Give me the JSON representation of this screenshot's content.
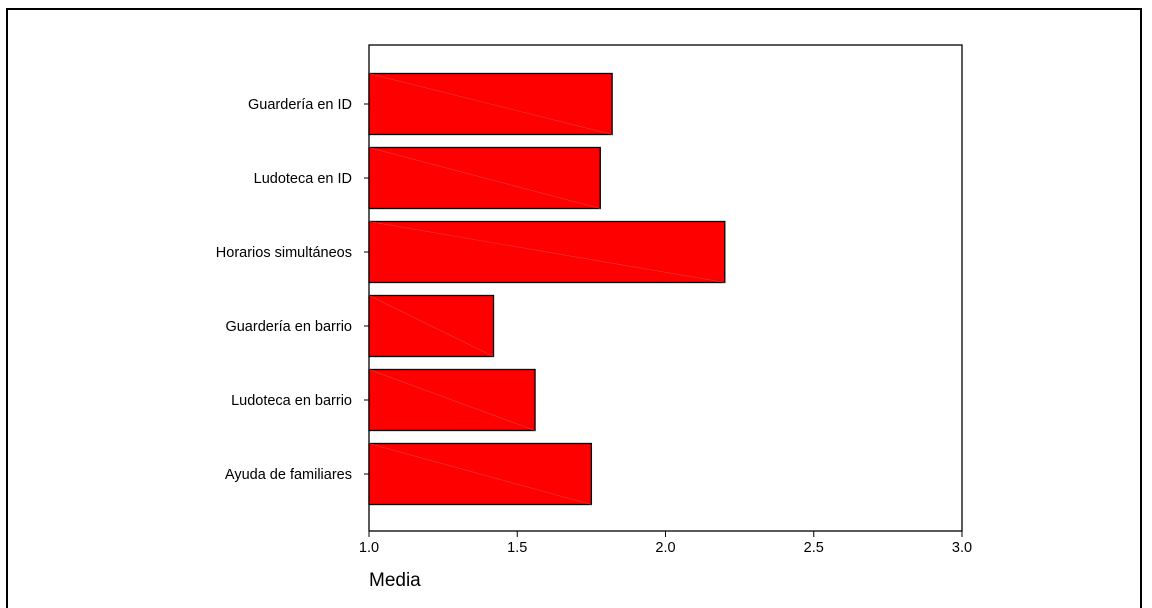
{
  "chart_data": {
    "type": "bar",
    "orientation": "horizontal",
    "title": "",
    "xlabel": "Media",
    "ylabel": "",
    "categories": [
      "Guardería en ID",
      "Ludoteca en ID",
      "Horarios simultáneos",
      "Guardería en barrio",
      "Ludoteca en barrio",
      "Ayuda de familiares"
    ],
    "values": [
      1.82,
      1.78,
      2.2,
      1.42,
      1.56,
      1.75
    ],
    "xlim": [
      1.0,
      3.0
    ],
    "xticks": [
      "1.0",
      "1.5",
      "2.0",
      "2.5",
      "3.0"
    ],
    "grid": false,
    "bar_color": "#ff0000",
    "bar_edge_color": "#000000"
  }
}
